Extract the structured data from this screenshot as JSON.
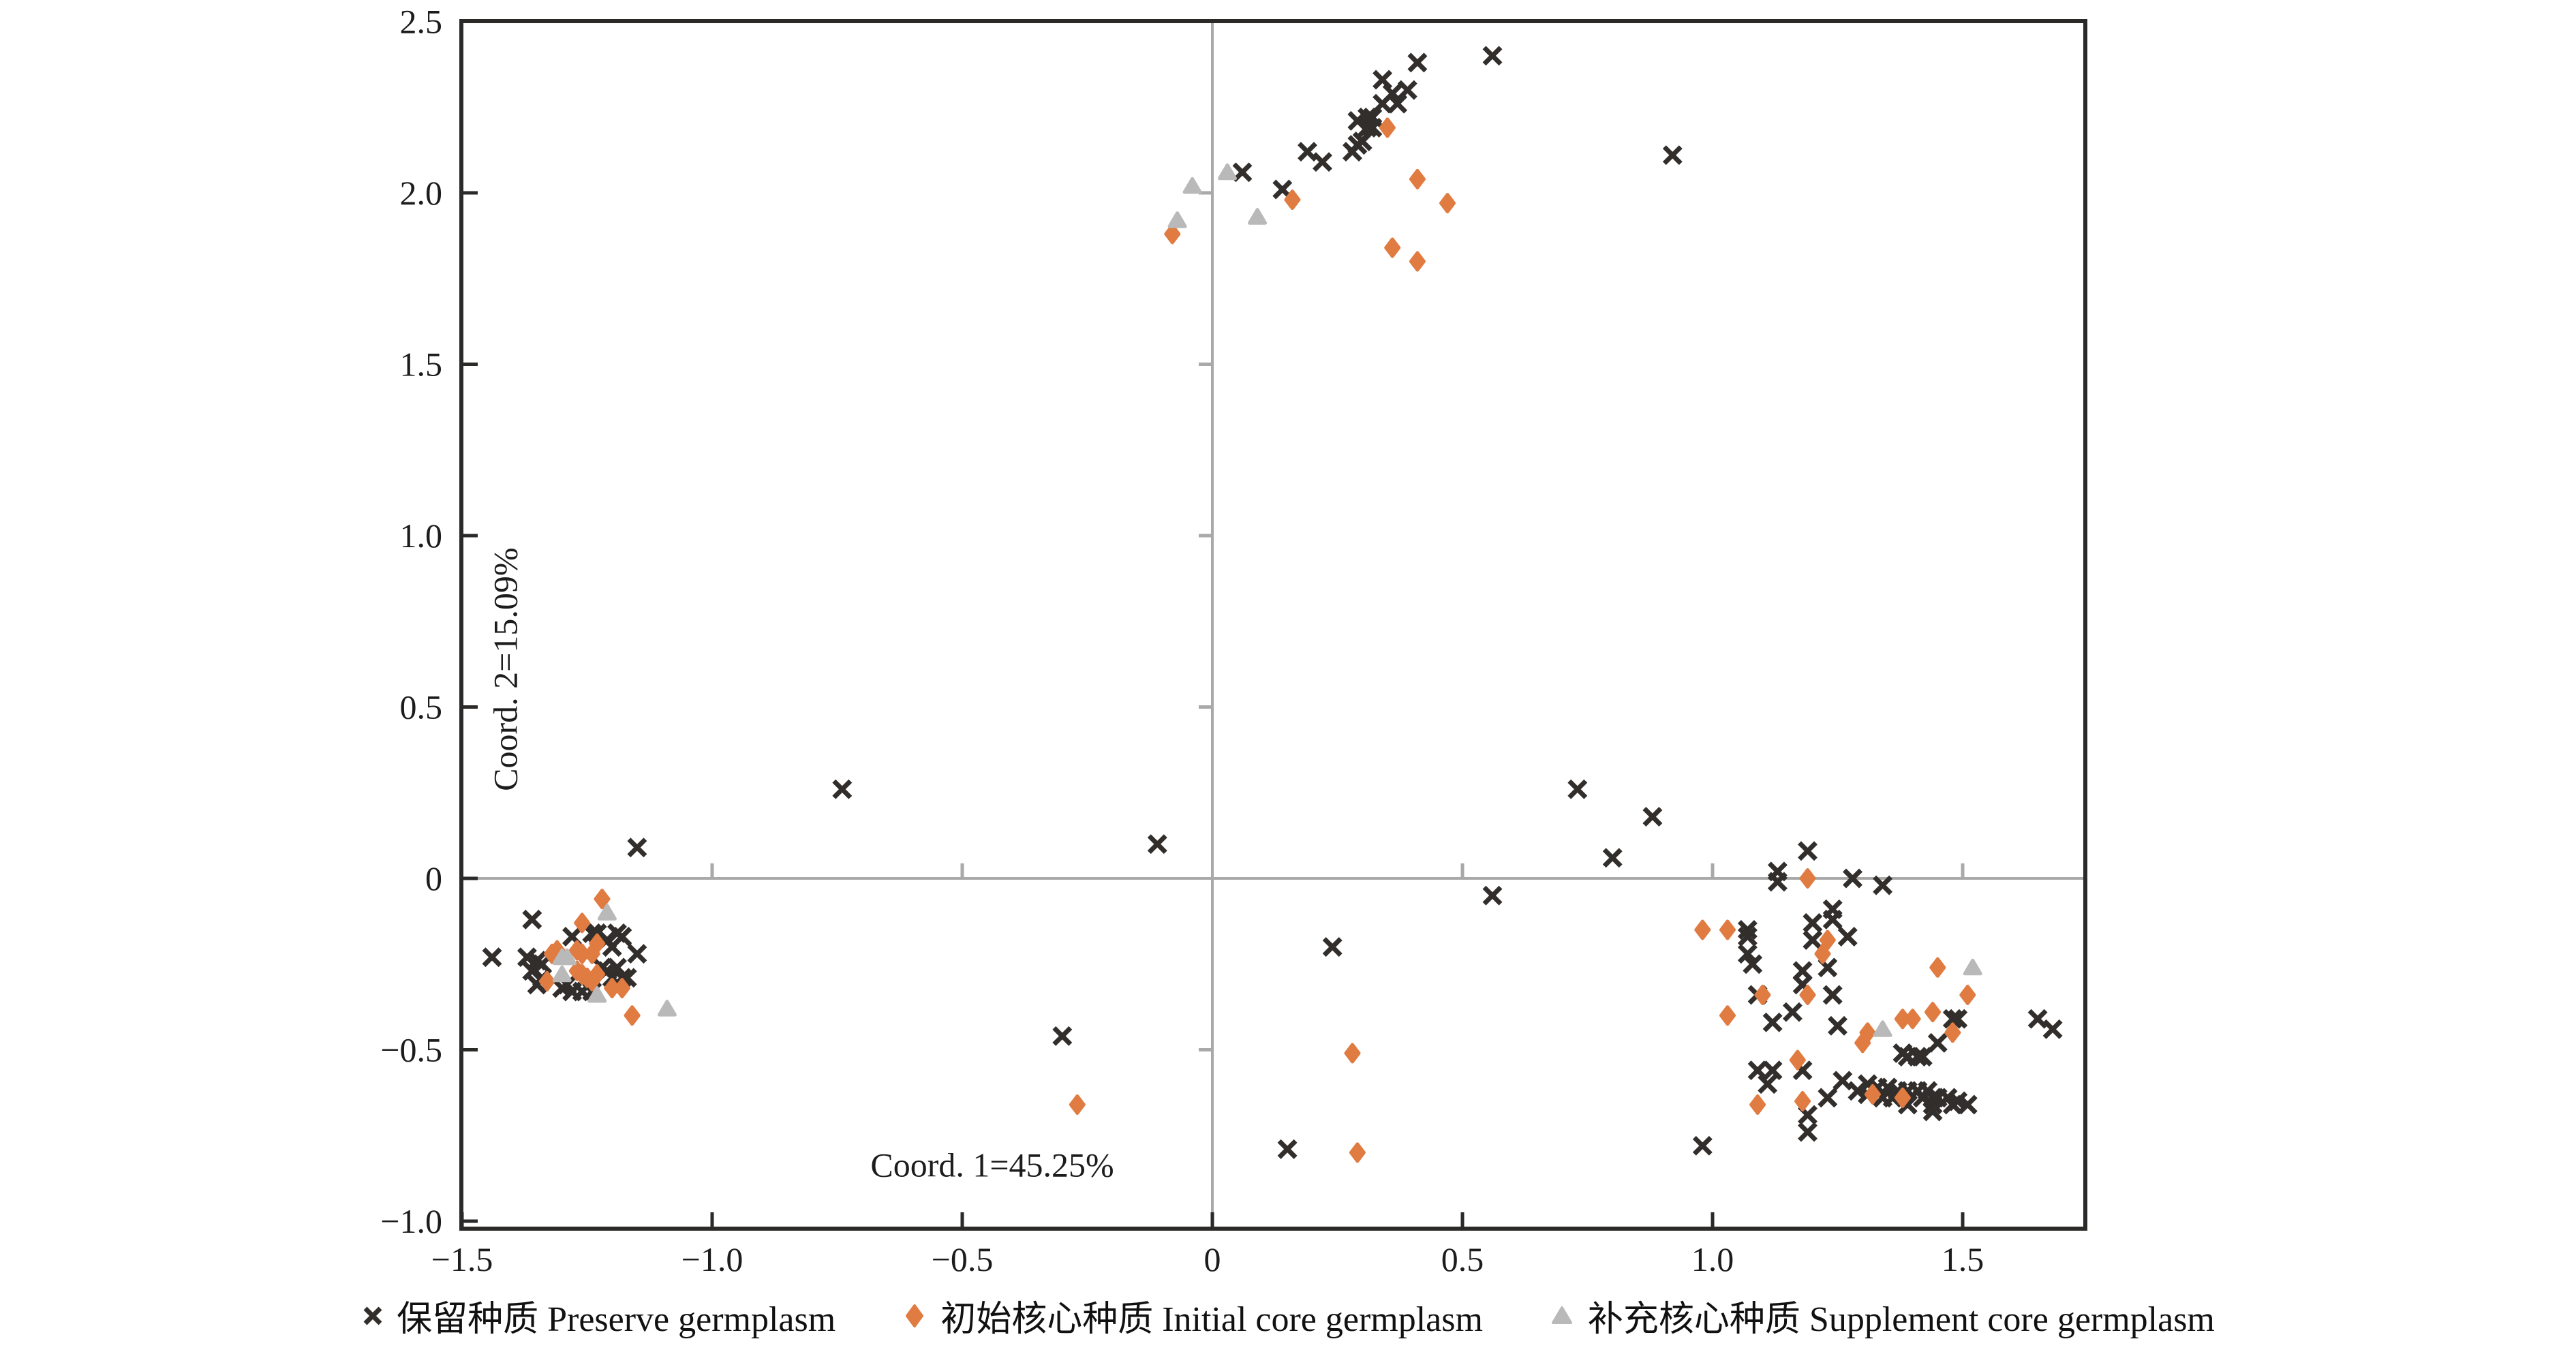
{
  "figure": {
    "background": "#ffffff",
    "colors": {
      "axis_border": "#2b2a28",
      "zero_line": "#a9a9a9",
      "tick_label": "#1c1c1c",
      "preserve": "#322e2c",
      "initial": "#e07b41",
      "supplement": "#b9b9b9"
    }
  },
  "legend": {
    "items": [
      {
        "id": "preserve",
        "marker": "x-marker-icon",
        "color": "#322e2c",
        "label": "保留种质 Preserve germplasm"
      },
      {
        "id": "initial",
        "marker": "diamond-marker-icon",
        "color": "#e07b41",
        "label": "初始核心种质 Initial core germplasm"
      },
      {
        "id": "supplement",
        "marker": "triangle-marker-icon",
        "color": "#b9b9b9",
        "label": "补充核心种质 Supplement core germplasm"
      }
    ]
  },
  "chart_data": {
    "type": "scatter",
    "title": "",
    "xlabel": "Coord. 1=45.25%",
    "ylabel": "Coord. 2=15.09%",
    "xlim": [
      -1.5,
      1.747
    ],
    "ylim": [
      -1.022,
      2.5
    ],
    "grid": "zero-lines-only",
    "legend_position": "bottom-center",
    "x_ticks": [
      {
        "value": -1.5,
        "label": "−1.5"
      },
      {
        "value": -1.0,
        "label": "−1.0"
      },
      {
        "value": -0.5,
        "label": "−0.5"
      },
      {
        "value": 0,
        "label": "0"
      },
      {
        "value": 0.5,
        "label": "0.5"
      },
      {
        "value": 1.0,
        "label": "1.0"
      },
      {
        "value": 1.5,
        "label": "1.5"
      }
    ],
    "y_ticks": [
      {
        "value": 2.5,
        "label": "2.5"
      },
      {
        "value": 2.0,
        "label": "2.0"
      },
      {
        "value": 1.5,
        "label": "1.5"
      },
      {
        "value": 1.0,
        "label": "1.0"
      },
      {
        "value": 0.5,
        "label": "0.5"
      },
      {
        "value": 0,
        "label": "0"
      },
      {
        "value": -0.5,
        "label": "−0.5"
      },
      {
        "value": -1.0,
        "label": "−1.0"
      }
    ],
    "zero_axis_ticks_x": [
      -1.0,
      -0.5,
      0.5,
      1.0,
      1.5
    ],
    "zero_axis_ticks_y": [
      -0.5,
      0.5,
      1.0,
      1.5,
      2.0
    ],
    "xlabel_anchor": {
      "x": -0.44,
      "y": -0.87
    },
    "ylabel_anchor": {
      "x": -1.39,
      "y": 0.61
    },
    "series": [
      {
        "name": "保留种质 Preserve germplasm",
        "marker": "x",
        "color": "#322e2c",
        "points": [
          [
            0.41,
            2.38
          ],
          [
            0.56,
            2.4
          ],
          [
            0.34,
            2.33
          ],
          [
            0.39,
            2.3
          ],
          [
            0.36,
            2.29
          ],
          [
            0.34,
            2.26
          ],
          [
            0.37,
            2.26
          ],
          [
            0.31,
            2.22
          ],
          [
            0.32,
            2.22
          ],
          [
            0.29,
            2.21
          ],
          [
            0.31,
            2.19
          ],
          [
            0.32,
            2.19
          ],
          [
            0.3,
            2.15
          ],
          [
            0.29,
            2.14
          ],
          [
            0.28,
            2.12
          ],
          [
            0.19,
            2.12
          ],
          [
            0.22,
            2.09
          ],
          [
            0.06,
            2.06
          ],
          [
            0.14,
            2.01
          ],
          [
            0.92,
            2.11
          ],
          [
            -0.74,
            0.26
          ],
          [
            -1.15,
            0.09
          ],
          [
            -0.11,
            0.1
          ],
          [
            0.73,
            0.26
          ],
          [
            0.88,
            0.18
          ],
          [
            0.8,
            0.06
          ],
          [
            0.56,
            -0.05
          ],
          [
            0.24,
            -0.2
          ],
          [
            -0.3,
            -0.46
          ],
          [
            0.15,
            -0.79
          ],
          [
            -1.44,
            -0.23
          ],
          [
            -1.36,
            -0.12
          ],
          [
            -1.37,
            -0.23
          ],
          [
            -1.35,
            -0.24
          ],
          [
            -1.34,
            -0.25
          ],
          [
            -1.36,
            -0.27
          ],
          [
            -1.34,
            -0.29
          ],
          [
            -1.35,
            -0.31
          ],
          [
            -1.28,
            -0.17
          ],
          [
            -1.24,
            -0.16
          ],
          [
            -1.23,
            -0.16
          ],
          [
            -1.21,
            -0.18
          ],
          [
            -1.19,
            -0.16
          ],
          [
            -1.18,
            -0.17
          ],
          [
            -1.2,
            -0.2
          ],
          [
            -1.15,
            -0.22
          ],
          [
            -1.29,
            -0.31
          ],
          [
            -1.3,
            -0.32
          ],
          [
            -1.28,
            -0.33
          ],
          [
            -1.26,
            -0.33
          ],
          [
            -1.24,
            -0.33
          ],
          [
            -1.22,
            -0.26
          ],
          [
            -1.21,
            -0.27
          ],
          [
            -1.2,
            -0.29
          ],
          [
            -1.19,
            -0.26
          ],
          [
            -1.18,
            -0.29
          ],
          [
            -1.17,
            -0.29
          ],
          [
            1.19,
            0.08
          ],
          [
            1.13,
            0.02
          ],
          [
            1.13,
            -0.01
          ],
          [
            1.28,
            0.0
          ],
          [
            1.34,
            -0.02
          ],
          [
            1.24,
            -0.09
          ],
          [
            1.24,
            -0.12
          ],
          [
            1.2,
            -0.13
          ],
          [
            1.2,
            -0.18
          ],
          [
            1.27,
            -0.17
          ],
          [
            1.07,
            -0.15
          ],
          [
            1.07,
            -0.17
          ],
          [
            1.07,
            -0.22
          ],
          [
            1.08,
            -0.25
          ],
          [
            1.18,
            -0.27
          ],
          [
            1.23,
            -0.26
          ],
          [
            1.18,
            -0.31
          ],
          [
            1.09,
            -0.34
          ],
          [
            1.24,
            -0.34
          ],
          [
            1.16,
            -0.39
          ],
          [
            1.12,
            -0.42
          ],
          [
            1.25,
            -0.43
          ],
          [
            1.48,
            -0.41
          ],
          [
            1.49,
            -0.41
          ],
          [
            1.65,
            -0.41
          ],
          [
            1.68,
            -0.44
          ],
          [
            1.45,
            -0.48
          ],
          [
            1.38,
            -0.51
          ],
          [
            1.39,
            -0.52
          ],
          [
            1.41,
            -0.52
          ],
          [
            1.42,
            -0.52
          ],
          [
            1.09,
            -0.56
          ],
          [
            1.12,
            -0.56
          ],
          [
            1.11,
            -0.6
          ],
          [
            1.18,
            -0.56
          ],
          [
            1.26,
            -0.59
          ],
          [
            1.23,
            -0.64
          ],
          [
            1.19,
            -0.69
          ],
          [
            0.98,
            -0.78
          ],
          [
            1.19,
            -0.74
          ],
          [
            1.29,
            -0.62
          ],
          [
            1.31,
            -0.6
          ],
          [
            1.31,
            -0.63
          ],
          [
            1.33,
            -0.61
          ],
          [
            1.34,
            -0.64
          ],
          [
            1.35,
            -0.61
          ],
          [
            1.36,
            -0.64
          ],
          [
            1.37,
            -0.62
          ],
          [
            1.39,
            -0.62
          ],
          [
            1.39,
            -0.66
          ],
          [
            1.41,
            -0.62
          ],
          [
            1.42,
            -0.64
          ],
          [
            1.43,
            -0.62
          ],
          [
            1.44,
            -0.64
          ],
          [
            1.44,
            -0.66
          ],
          [
            1.45,
            -0.64
          ],
          [
            1.47,
            -0.64
          ],
          [
            1.48,
            -0.66
          ],
          [
            1.49,
            -0.65
          ],
          [
            1.51,
            -0.66
          ],
          [
            1.44,
            -0.68
          ]
        ]
      },
      {
        "name": "初始核心种质 Initial core germplasm",
        "marker": "diamond",
        "color": "#e07b41",
        "points": [
          [
            0.35,
            2.19
          ],
          [
            0.41,
            2.04
          ],
          [
            0.47,
            1.97
          ],
          [
            0.16,
            1.98
          ],
          [
            -0.08,
            1.88
          ],
          [
            0.36,
            1.84
          ],
          [
            0.41,
            1.8
          ],
          [
            0.28,
            -0.51
          ],
          [
            -0.27,
            -0.66
          ],
          [
            0.29,
            -0.8
          ],
          [
            -1.22,
            -0.06
          ],
          [
            -1.26,
            -0.13
          ],
          [
            -1.23,
            -0.19
          ],
          [
            -1.32,
            -0.22
          ],
          [
            -1.31,
            -0.21
          ],
          [
            -1.27,
            -0.21
          ],
          [
            -1.26,
            -0.22
          ],
          [
            -1.24,
            -0.22
          ],
          [
            -1.33,
            -0.3
          ],
          [
            -1.27,
            -0.27
          ],
          [
            -1.26,
            -0.28
          ],
          [
            -1.25,
            -0.29
          ],
          [
            -1.24,
            -0.3
          ],
          [
            -1.23,
            -0.28
          ],
          [
            -1.2,
            -0.32
          ],
          [
            -1.18,
            -0.32
          ],
          [
            -1.16,
            -0.4
          ],
          [
            1.19,
            0.0
          ],
          [
            0.98,
            -0.15
          ],
          [
            1.03,
            -0.15
          ],
          [
            1.23,
            -0.18
          ],
          [
            1.22,
            -0.22
          ],
          [
            1.19,
            -0.34
          ],
          [
            1.1,
            -0.34
          ],
          [
            1.45,
            -0.26
          ],
          [
            1.51,
            -0.34
          ],
          [
            1.31,
            -0.45
          ],
          [
            1.3,
            -0.48
          ],
          [
            1.38,
            -0.41
          ],
          [
            1.4,
            -0.41
          ],
          [
            1.44,
            -0.39
          ],
          [
            1.48,
            -0.45
          ],
          [
            1.03,
            -0.4
          ],
          [
            1.17,
            -0.53
          ],
          [
            1.09,
            -0.66
          ],
          [
            1.18,
            -0.65
          ],
          [
            1.32,
            -0.63
          ],
          [
            1.38,
            -0.64
          ]
        ]
      },
      {
        "name": "补充核心种质 Supplement core germplasm",
        "marker": "triangle",
        "color": "#b9b9b9",
        "points": [
          [
            0.03,
            2.06
          ],
          [
            -0.04,
            2.02
          ],
          [
            0.09,
            1.93
          ],
          [
            -0.07,
            1.92
          ],
          [
            -1.21,
            -0.1
          ],
          [
            -1.3,
            -0.23
          ],
          [
            -1.29,
            -0.23
          ],
          [
            -1.3,
            -0.28
          ],
          [
            -1.23,
            -0.34
          ],
          [
            -1.09,
            -0.38
          ],
          [
            1.52,
            -0.26
          ],
          [
            1.34,
            -0.44
          ]
        ]
      }
    ]
  }
}
